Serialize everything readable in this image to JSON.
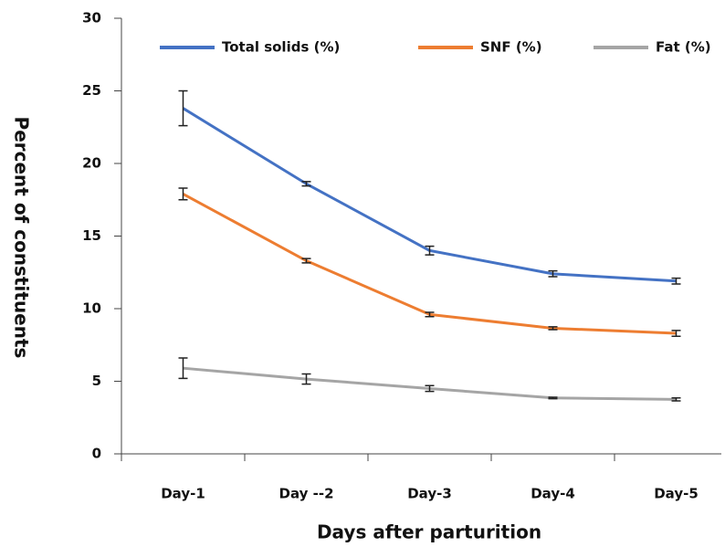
{
  "chart_data": {
    "type": "line",
    "x_label": "Days after parturition",
    "y_label": "Percent of constituents",
    "categories": [
      "Day-1",
      "Day  --2",
      "Day-3",
      "Day-4",
      "Day-5"
    ],
    "series": [
      {
        "name": "Total solids (%)",
        "color": "#4472c4",
        "values": [
          23.8,
          18.6,
          14.0,
          12.4,
          11.9
        ],
        "errors": [
          1.2,
          0.15,
          0.3,
          0.2,
          0.2
        ]
      },
      {
        "name": "SNF (%)",
        "color": "#ed7d31",
        "values": [
          17.9,
          13.3,
          9.6,
          8.65,
          8.3
        ],
        "errors": [
          0.4,
          0.15,
          0.15,
          0.1,
          0.2
        ]
      },
      {
        "name": "Fat (%)",
        "color": "#a5a5a5",
        "values": [
          5.9,
          5.15,
          4.5,
          3.85,
          3.75
        ],
        "errors": [
          0.7,
          0.35,
          0.2,
          0.05,
          0.1
        ]
      }
    ],
    "ylim": [
      0,
      30
    ],
    "yticks": [
      0,
      5,
      10,
      15,
      20,
      25,
      30
    ],
    "legend": "top",
    "grid": false
  }
}
